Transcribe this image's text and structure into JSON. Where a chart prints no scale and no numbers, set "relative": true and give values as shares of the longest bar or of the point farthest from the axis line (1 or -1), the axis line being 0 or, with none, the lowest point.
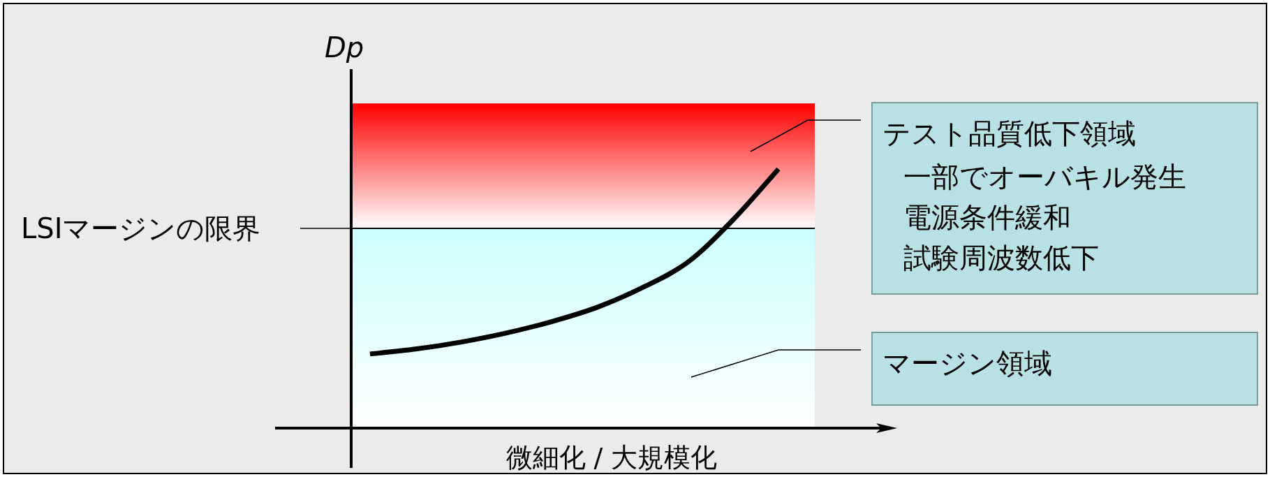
{
  "chart_data": {
    "type": "line",
    "relative": true,
    "xlabel": "微細化 / 大規模化",
    "ylabel": "*Dp*",
    "categories": [
      null,
      null,
      null,
      null,
      null,
      null,
      null,
      null,
      null,
      null
    ],
    "series": [
      {
        "color": "#000000",
        "values": [
          0.286,
          0.305,
          0.332,
          0.367,
          0.411,
          0.466,
          0.542,
          0.64,
          0.804,
          1
        ]
      }
    ],
    "ref_lines": [
      {
        "axis": "y",
        "value": 0.771,
        "label": "LSIマージンの限界",
        "color": "#000000"
      }
    ],
    "bands": [
      {
        "axis": "y",
        "from": 0.771,
        "to": 1.253,
        "label": "テスト品質低下領域",
        "color": "#ff0000"
      },
      {
        "axis": "y",
        "from": 0,
        "to": 0.771,
        "label": "マージン領域",
        "color": "#ccffff"
      }
    ],
    "annotations": [
      "一部でオーバキル発生",
      "電源条件緩和",
      "試験周波数低下"
    ],
    "marker": "none",
    "line_style": "solid"
  }
}
